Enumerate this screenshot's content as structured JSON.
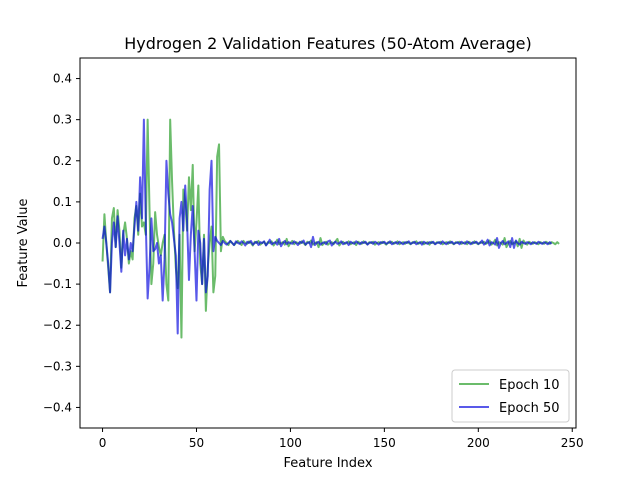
{
  "chart_data": {
    "type": "line",
    "title": "Hydrogen 2 Validation Features (50-Atom Average)",
    "xlabel": "Feature Index",
    "ylabel": "Feature Value",
    "xlim": [
      -12,
      252
    ],
    "ylim": [
      -0.45,
      0.45
    ],
    "xticks": [
      0,
      50,
      100,
      150,
      200,
      250
    ],
    "xtick_labels": [
      "0",
      "50",
      "100",
      "150",
      "200",
      "250"
    ],
    "yticks": [
      -0.4,
      -0.3,
      -0.2,
      -0.1,
      0.0,
      0.1,
      0.2,
      0.3,
      0.4
    ],
    "ytick_labels": [
      "−0.4",
      "−0.3",
      "−0.2",
      "−0.1",
      "0.0",
      "0.1",
      "0.2",
      "0.3",
      "0.4"
    ],
    "grid": false,
    "legend_position": "bottom-right",
    "series": [
      {
        "name": "Epoch 10",
        "color": "#2ca02c",
        "opacity": 0.7,
        "values": [
          -0.045,
          0.07,
          0.0,
          -0.06,
          -0.12,
          0.06,
          0.085,
          -0.01,
          0.08,
          0.03,
          -0.06,
          0.02,
          0.05,
          0.01,
          -0.05,
          -0.02,
          -0.04,
          0.06,
          0.09,
          0.02,
          0.12,
          0.04,
          0.05,
          0.02,
          0.3,
          0.08,
          -0.1,
          -0.05,
          0.075,
          0.02,
          -0.01,
          -0.03,
          0.0,
          0.02,
          -0.1,
          -0.14,
          0.3,
          0.15,
          0.03,
          -0.06,
          -0.11,
          0.02,
          -0.23,
          0.13,
          0.1,
          0.03,
          0.16,
          0.08,
          0.19,
          -0.02,
          0.05,
          0.14,
          -0.05,
          -0.1,
          0.02,
          -0.165,
          -0.06,
          0.0,
          0.04,
          -0.12,
          -0.08,
          0.21,
          0.24,
          -0.02,
          0.015,
          0.005,
          0.0,
          -0.005,
          0.005,
          0.0,
          -0.005,
          0.0,
          0.005,
          0.0,
          -0.005,
          0.005,
          0.0,
          -0.002,
          0.004,
          0.0,
          -0.006,
          0.003,
          0.0,
          0.005,
          -0.004,
          0.0,
          0.003,
          -0.005,
          0.002,
          0.0,
          0.004,
          -0.006,
          0.0,
          0.008,
          -0.003,
          0.0,
          0.002,
          -0.004,
          0.01,
          -0.008,
          0.0,
          0.005,
          -0.003,
          0.002,
          0.0,
          -0.002,
          0.004,
          0.0,
          -0.005,
          0.003,
          0.0,
          0.006,
          -0.004,
          0.0,
          0.002,
          -0.01,
          0.012,
          -0.005,
          0.0,
          0.003,
          -0.004,
          0.0,
          0.002,
          -0.003,
          0.004,
          0.01,
          -0.006,
          0.0,
          0.003,
          -0.002,
          0.0,
          0.004,
          -0.003,
          0.0,
          0.002,
          -0.005,
          0.003,
          0.0,
          -0.002,
          0.004,
          0.0,
          -0.003,
          0.002,
          0.0,
          0.003,
          -0.004,
          0.0,
          0.002,
          -0.002,
          0.003,
          0.0,
          -0.004,
          0.002,
          0.0,
          0.003,
          -0.002,
          0.0,
          0.004,
          -0.003,
          0.0,
          0.002,
          -0.002,
          0.003,
          0.0,
          -0.003,
          0.002,
          0.0,
          0.004,
          -0.002,
          0.0,
          0.003,
          -0.003,
          0.0,
          0.002,
          -0.004,
          0.003,
          0.0,
          -0.002,
          0.002,
          0.0,
          0.003,
          -0.003,
          0.0,
          0.002,
          -0.002,
          0.004,
          0.0,
          -0.003,
          0.002,
          0.0,
          0.003,
          -0.002,
          0.0,
          0.002,
          -0.003,
          0.003,
          0.0,
          -0.002,
          0.004,
          0.0,
          -0.003,
          0.002,
          0.0,
          0.003,
          -0.002,
          0.0,
          0.006,
          -0.004,
          0.0,
          0.008,
          -0.006,
          0.002,
          0.0,
          -0.004,
          0.012,
          -0.01,
          0.0,
          0.005,
          -0.003,
          0.0,
          0.004,
          -0.008,
          0.01,
          -0.012,
          0.006,
          0.0,
          -0.004,
          0.003,
          0.0,
          -0.002,
          0.002,
          0.0,
          -0.003,
          0.002,
          0.0,
          -0.002,
          0.003,
          0.0,
          -0.002,
          0.002,
          0.0,
          -0.003,
          0.002,
          -0.002
        ]
      },
      {
        "name": "Epoch 50",
        "color": "#0000dd",
        "opacity": 0.65,
        "values": [
          0.01,
          0.04,
          0.0,
          -0.05,
          -0.12,
          0.0,
          0.05,
          -0.01,
          0.065,
          0.0,
          -0.07,
          0.03,
          -0.03,
          0.01,
          -0.04,
          0.0,
          -0.02,
          0.04,
          0.1,
          0.03,
          0.16,
          0.06,
          0.3,
          0.05,
          -0.135,
          -0.06,
          0.06,
          -0.02,
          -0.015,
          0.0,
          -0.05,
          -0.03,
          -0.14,
          -0.04,
          0.2,
          0.12,
          0.07,
          0.05,
          0.01,
          -0.03,
          -0.22,
          0.06,
          0.1,
          0.03,
          0.14,
          0.05,
          -0.09,
          0.02,
          0.09,
          -0.02,
          -0.14,
          0.03,
          0.0,
          -0.1,
          0.01,
          -0.12,
          -0.08,
          0.13,
          0.2,
          -0.02,
          0.015,
          0.005,
          0.0,
          -0.005,
          0.005,
          0.0,
          -0.004,
          0.0,
          0.005,
          0.0,
          -0.005,
          0.004,
          0.0,
          -0.002,
          0.004,
          0.0,
          -0.006,
          0.003,
          0.0,
          0.005,
          -0.004,
          0.0,
          0.003,
          -0.005,
          0.002,
          0.0,
          0.004,
          -0.006,
          0.0,
          0.008,
          -0.003,
          0.0,
          0.002,
          -0.004,
          0.01,
          -0.008,
          0.0,
          0.005,
          -0.003,
          0.002,
          0.0,
          -0.002,
          0.004,
          0.0,
          -0.005,
          0.003,
          0.0,
          0.006,
          -0.004,
          0.0,
          0.002,
          -0.01,
          0.015,
          -0.005,
          0.0,
          0.003,
          -0.004,
          0.0,
          0.002,
          -0.003,
          0.004,
          0.006,
          -0.006,
          0.0,
          0.003,
          -0.002,
          0.0,
          0.004,
          -0.003,
          0.0,
          0.002,
          -0.005,
          0.003,
          0.0,
          -0.002,
          0.004,
          0.0,
          -0.003,
          0.002,
          0.0,
          0.003,
          -0.004,
          0.0,
          0.002,
          -0.002,
          0.003,
          0.0,
          -0.004,
          0.002,
          0.0,
          0.003,
          -0.002,
          0.0,
          0.004,
          -0.003,
          0.0,
          0.002,
          -0.002,
          0.003,
          0.0,
          -0.003,
          0.002,
          0.0,
          0.004,
          -0.002,
          0.0,
          0.003,
          -0.003,
          0.0,
          0.002,
          -0.004,
          0.003,
          0.0,
          -0.002,
          0.002,
          0.0,
          0.003,
          -0.003,
          0.0,
          0.002,
          -0.002,
          0.004,
          0.0,
          -0.003,
          0.002,
          0.0,
          0.003,
          -0.002,
          0.0,
          0.002,
          -0.003,
          0.003,
          0.0,
          -0.002,
          0.004,
          0.0,
          -0.003,
          0.002,
          0.0,
          0.003,
          -0.002,
          0.0,
          0.006,
          -0.004,
          0.0,
          0.008,
          -0.006,
          0.002,
          0.0,
          -0.004,
          0.012,
          -0.012,
          0.0,
          0.005,
          -0.003,
          0.0,
          0.004,
          -0.01,
          0.012,
          -0.012,
          0.006,
          0.0,
          -0.004,
          0.003,
          0.0,
          -0.002,
          0.002,
          0.0,
          -0.003,
          0.002,
          0.0,
          -0.002,
          0.003,
          0.0,
          -0.002,
          0.002,
          0.0,
          -0.003,
          0.002,
          -0.002
        ]
      }
    ]
  }
}
